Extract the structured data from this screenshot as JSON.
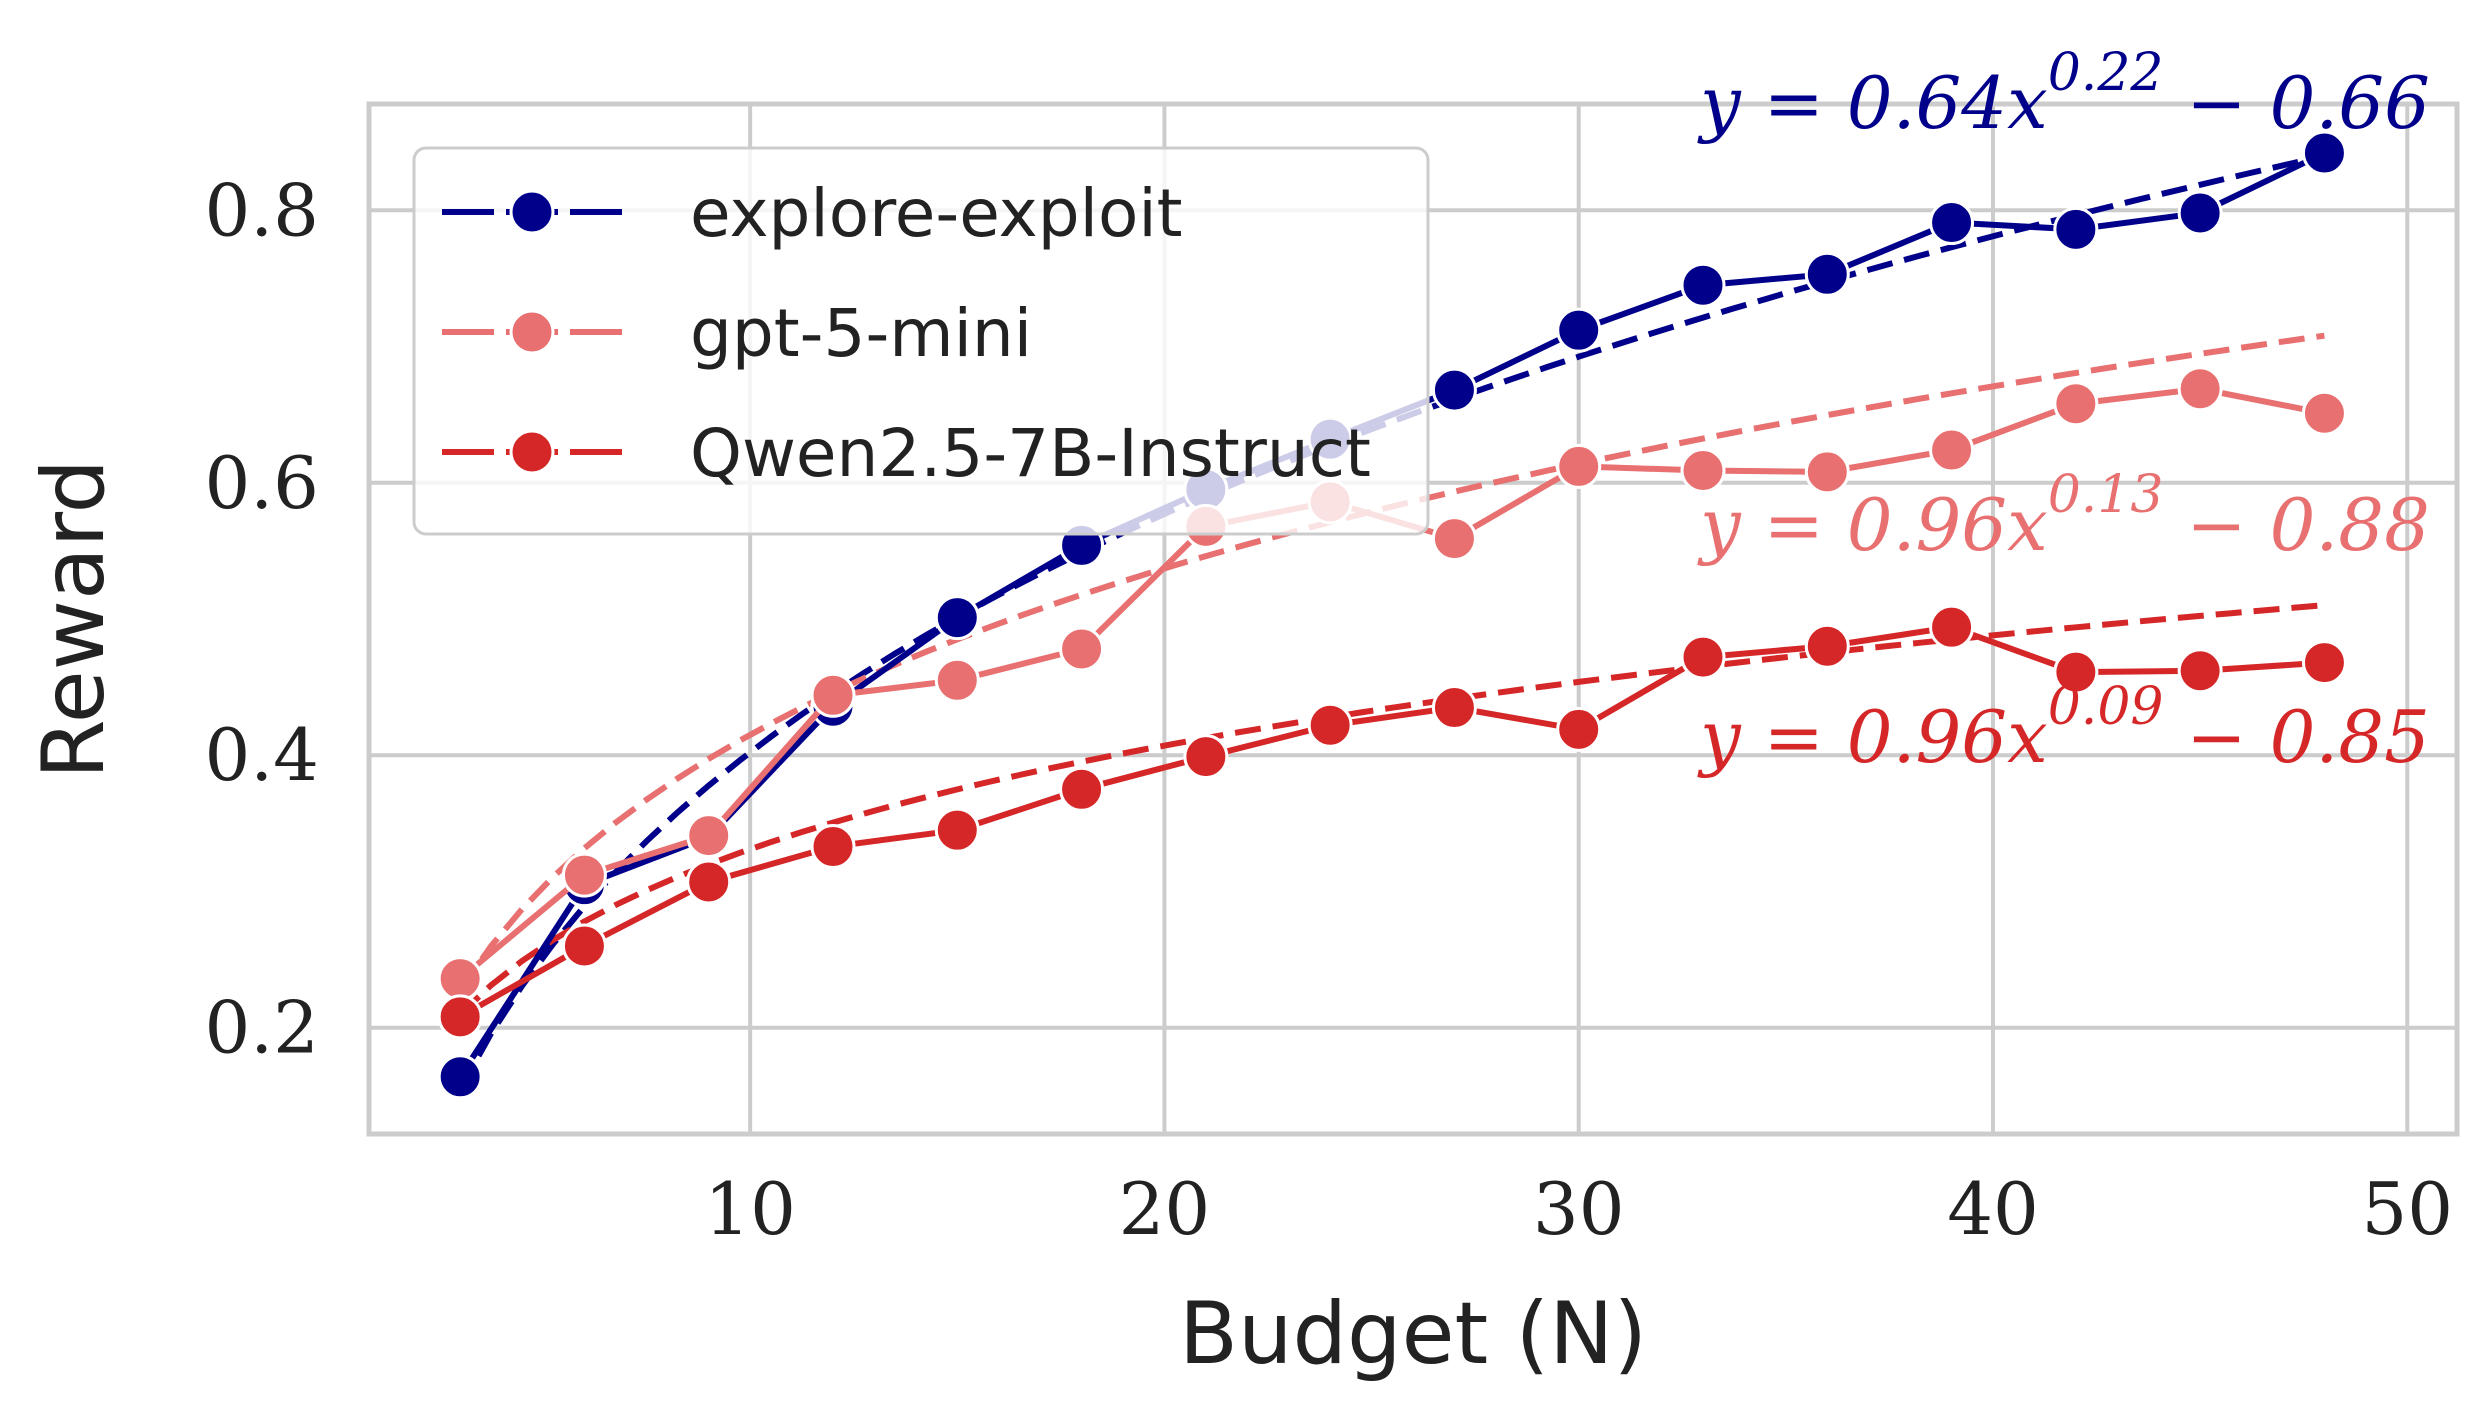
{
  "chart_data": {
    "type": "line",
    "xlabel": "Budget (N)",
    "ylabel": "Reward",
    "xlim": [
      0.8,
      51.2
    ],
    "ylim": [
      0.122,
      0.878
    ],
    "xticks": [
      "10",
      "20",
      "30",
      "40",
      "50"
    ],
    "xtick_values": [
      10,
      20,
      30,
      40,
      50
    ],
    "yticks": [
      "0.2",
      "0.4",
      "0.6",
      "0.8"
    ],
    "ytick_values": [
      0.2,
      0.4,
      0.6,
      0.8
    ],
    "grid": true,
    "legend_position": "top-left",
    "x": [
      3,
      6,
      9,
      12,
      15,
      18,
      21,
      24,
      27,
      30,
      33,
      36,
      39,
      42,
      45,
      48
    ],
    "series": [
      {
        "name": "explore-exploit",
        "color": "#00008B",
        "values": [
          0.164,
          0.305,
          0.34,
          0.436,
          0.501,
          0.554,
          0.595,
          0.632,
          0.668,
          0.712,
          0.745,
          0.753,
          0.791,
          0.786,
          0.798,
          0.842
        ],
        "fit": {
          "label": "y = 0.64x^0.22 − 0.66",
          "a": 0.64,
          "b": 0.22,
          "c": -0.66
        }
      },
      {
        "name": "gpt-5-mini",
        "color": "#E87070",
        "values": [
          0.236,
          0.312,
          0.341,
          0.444,
          0.455,
          0.478,
          0.568,
          0.586,
          0.559,
          0.612,
          0.609,
          0.608,
          0.624,
          0.658,
          0.669,
          0.651
        ],
        "fit": {
          "label": "y = 0.96x^0.13 − 0.88",
          "a": 0.96,
          "b": 0.13,
          "c": -0.88
        }
      },
      {
        "name": "Qwen2.5-7B-Instruct",
        "color": "#D62728",
        "values": [
          0.208,
          0.26,
          0.307,
          0.333,
          0.345,
          0.375,
          0.399,
          0.422,
          0.435,
          0.419,
          0.472,
          0.48,
          0.494,
          0.461,
          0.462,
          0.468
        ],
        "fit": {
          "label": "y = 0.96x^0.09 − 0.85",
          "a": 0.96,
          "b": 0.09,
          "c": -0.85
        }
      }
    ],
    "annotations": [
      {
        "pre": "y = 0.64x",
        "sup": "0.22",
        "post": " − 0.66"
      },
      {
        "pre": "y = 0.96x",
        "sup": "0.13",
        "post": " − 0.88"
      },
      {
        "pre": "y = 0.96x",
        "sup": "0.09",
        "post": " − 0.85"
      }
    ]
  }
}
